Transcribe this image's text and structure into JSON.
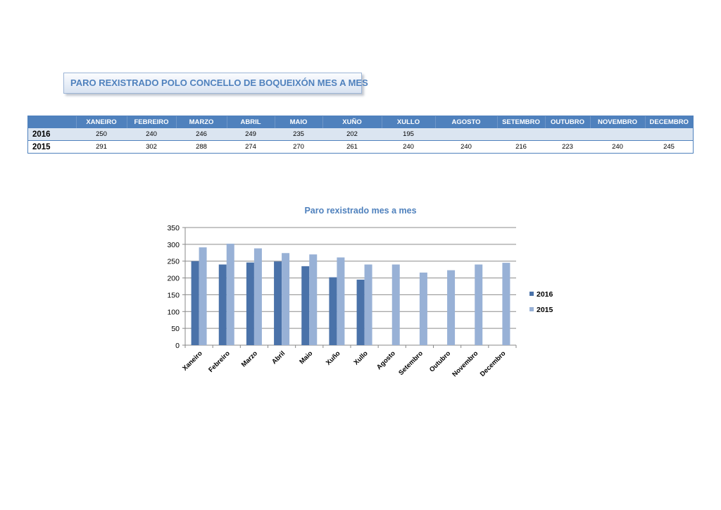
{
  "page_title": "PARO REXISTRADO POLO CONCELLO DE BOQUEIXÓN MES A MES",
  "table": {
    "headers": [
      "",
      "XANEIRO",
      "FEBREIRO",
      "MARZO",
      "ABRIL",
      "MAIO",
      "XUÑO",
      "XULLO",
      "AGOSTO",
      "SETEMBRO",
      "OUTUBRO",
      "NOVEMBRO",
      "DECEMBRO"
    ],
    "rows": [
      {
        "label": "2016",
        "values": [
          "250",
          "240",
          "246",
          "249",
          "235",
          "202",
          "195",
          "",
          "",
          "",
          "",
          ""
        ]
      },
      {
        "label": "2015",
        "values": [
          "291",
          "302",
          "288",
          "274",
          "270",
          "261",
          "240",
          "240",
          "216",
          "223",
          "240",
          "245"
        ]
      }
    ]
  },
  "chart_data": {
    "type": "bar",
    "title": "Paro rexistrado mes a mes",
    "xlabel": "",
    "ylabel": "",
    "categories": [
      "Xaneiro",
      "Febreiro",
      "Marzo",
      "Abril",
      "Maio",
      "Xuño",
      "Xullo",
      "Agosto",
      "Setembro",
      "Outubro",
      "Novembro",
      "Decembro"
    ],
    "series": [
      {
        "name": "2016",
        "color": "#4a72a9",
        "values": [
          250,
          240,
          246,
          249,
          235,
          202,
          195,
          null,
          null,
          null,
          null,
          null
        ]
      },
      {
        "name": "2015",
        "color": "#98b1d6",
        "values": [
          291,
          302,
          288,
          274,
          270,
          261,
          240,
          240,
          216,
          223,
          240,
          245
        ]
      }
    ],
    "ylim": [
      0,
      350
    ],
    "yticks": [
      0,
      50,
      100,
      150,
      200,
      250,
      300,
      350
    ],
    "grid": true,
    "legend": "right"
  }
}
